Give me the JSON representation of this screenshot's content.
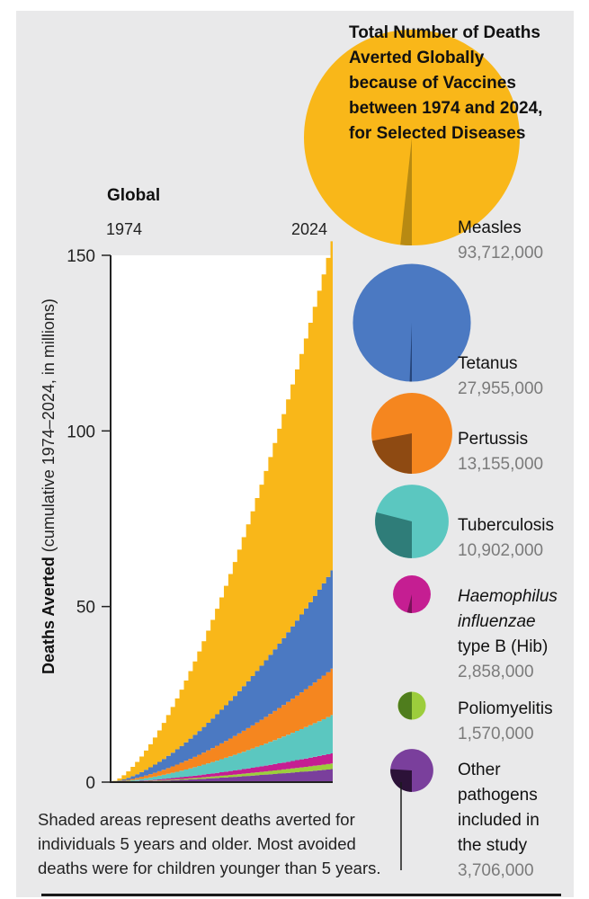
{
  "title": [
    "Total Number of Deaths",
    "Averted Globally",
    "because of Vaccines",
    "between 1974 and 2024,",
    "for Selected Diseases"
  ],
  "area_chart": {
    "region_label": "Global",
    "year_start_label": "1974",
    "year_end_label": "2024",
    "y_axis_label_bold": "Deaths Averted",
    "y_axis_label_rest": " (cumulative 1974–2024, in millions)",
    "y_ticks": [
      "0",
      "50",
      "100",
      "150"
    ]
  },
  "diseases": [
    {
      "key": "measles",
      "name_lines": [
        "Measles"
      ],
      "value_label": "93,712,000",
      "color": "#f9b719",
      "dark": "#b88a12"
    },
    {
      "key": "tetanus",
      "name_lines": [
        "Tetanus"
      ],
      "value_label": "27,955,000",
      "color": "#4b79c2",
      "dark": "#26457a"
    },
    {
      "key": "pertussis",
      "name_lines": [
        "Pertussis"
      ],
      "value_label": "13,155,000",
      "color": "#f5861f",
      "dark": "#8e4a12"
    },
    {
      "key": "tuberculosis",
      "name_lines": [
        "Tuberculosis"
      ],
      "value_label": "10,902,000",
      "color": "#5bc7c0",
      "dark": "#2f7d79"
    },
    {
      "key": "hib",
      "name_lines": [
        "Haemophilus",
        "influenzae",
        "type B (Hib)"
      ],
      "italic_lines": 2,
      "value_label": "2,858,000",
      "color": "#c51e92",
      "dark": "#7a1259"
    },
    {
      "key": "polio",
      "name_lines": [
        "Poliomyelitis"
      ],
      "value_label": "1,570,000",
      "color": "#9ccd3c",
      "dark": "#4f7d1d"
    },
    {
      "key": "other",
      "name_lines": [
        "Other",
        "pathogens",
        "included in",
        "the study"
      ],
      "value_label": "3,706,000",
      "color": "#7a3f9c",
      "dark": "#2c1238"
    }
  ],
  "footnote": [
    "Shaded areas represent deaths averted for",
    "individuals 5 years and older. Most avoided",
    "deaths were for children younger than 5 years."
  ],
  "chart_data": [
    {
      "type": "area",
      "title": "",
      "xlabel": "",
      "ylabel": "Deaths Averted (cumulative 1974–2024, in millions)",
      "x_range": [
        1974,
        2024
      ],
      "ylim": [
        0,
        150
      ],
      "stacked": true,
      "series": [
        {
          "name": "Other pathogens included in the study",
          "end_value": 3.7
        },
        {
          "name": "Poliomyelitis",
          "end_value": 1.6
        },
        {
          "name": "Haemophilus influenzae type B (Hib)",
          "end_value": 2.9
        },
        {
          "name": "Tuberculosis",
          "end_value": 10.9
        },
        {
          "name": "Pertussis",
          "end_value": 13.2
        },
        {
          "name": "Tetanus",
          "end_value": 28.0
        },
        {
          "name": "Measles",
          "end_value": 93.7
        }
      ]
    },
    {
      "type": "bubble",
      "title": "Total Number of Deaths Averted Globally because of Vaccines between 1974 and 2024, for Selected Diseases",
      "categories": [
        "Measles",
        "Tetanus",
        "Pertussis",
        "Tuberculosis",
        "Haemophilus influenzae type B (Hib)",
        "Poliomyelitis",
        "Other pathogens included in the study"
      ],
      "values": [
        93712000,
        27955000,
        13155000,
        10902000,
        2858000,
        1570000,
        3706000
      ],
      "older_than_5_share": [
        0.017,
        0.006,
        0.22,
        0.29,
        0.04,
        0.5,
        0.26
      ]
    }
  ]
}
